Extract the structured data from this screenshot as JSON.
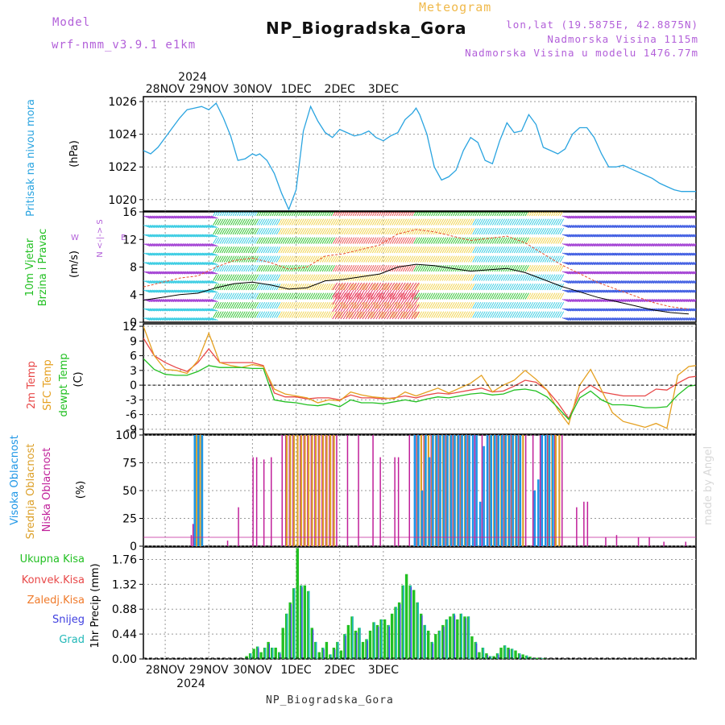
{
  "header": {
    "model_label": "Model",
    "model_name": "wrf-nmm_v3.9.1  e1km",
    "title": "NP_Biogradska_Gora",
    "meteogram": "Meteogram",
    "lonlat": "lon,lat (19.5875E, 42.8875N)",
    "elevation": "Nadmorska Visina 1115m",
    "model_elevation": "Nadmorska Visina u modelu 1476.77m",
    "made_by": "made by Angel",
    "footer": "NP_Biogradska_Gora"
  },
  "colors": {
    "pressure": "#2aa4e0",
    "wind_label": "#22c022",
    "temp2m": "#e84848",
    "sfc": "#e5a020",
    "dew": "#22c022",
    "high_cloud": "#1e96e6",
    "mid_cloud": "#dca02a",
    "low_cloud": "#c0209a",
    "total": "#22c022",
    "convective": "#e84848",
    "freezing": "#f07a2a",
    "snow": "#4040e0",
    "graupel": "#22b8b8"
  },
  "chart_data": [
    {
      "type": "line",
      "id": "pressure",
      "ylabel": "Pritisak na nivou mora",
      "unit": "(hPa)",
      "yticks": [
        1020,
        1022,
        1024,
        1026
      ],
      "ylim": [
        1019.3,
        1026.3
      ],
      "top_dates": {
        "year": "2024",
        "labels": [
          "28NOV",
          "29NOV",
          "30NOV",
          "1DEC",
          "2DEC",
          "3DEC"
        ]
      },
      "series": [
        {
          "x": [
            0,
            4,
            8,
            12,
            16,
            20,
            24,
            28,
            32,
            36,
            40,
            44,
            48,
            52,
            56,
            60,
            62,
            64,
            68,
            72,
            76,
            80,
            84,
            88,
            92,
            96,
            100,
            104,
            108,
            112,
            116,
            120,
            124,
            128,
            132,
            136,
            140,
            144,
            148,
            150,
            152,
            156,
            160,
            164,
            168,
            172,
            176,
            180,
            184,
            188,
            192,
            196,
            200,
            204,
            208,
            212,
            216,
            220,
            224,
            228,
            232,
            236,
            240,
            244,
            248,
            252,
            256,
            260,
            264,
            268,
            272,
            276,
            280,
            284,
            288,
            292,
            296,
            300,
            304
          ],
          "y": [
            1023.0,
            1022.8,
            1023.2,
            1023.8,
            1024.4,
            1025.0,
            1025.5,
            1025.6,
            1025.7,
            1025.5,
            1025.9,
            1025.0,
            1023.9,
            1022.4,
            1022.5,
            1022.8,
            1022.7,
            1022.8,
            1022.4,
            1021.6,
            1020.4,
            1019.4,
            1020.6,
            1024.2,
            1025.7,
            1024.8,
            1024.1,
            1023.8,
            1024.3,
            1024.1,
            1023.9,
            1024.0,
            1024.2,
            1023.8,
            1023.6,
            1023.9,
            1024.1,
            1024.9,
            1025.3,
            1025.6,
            1025.2,
            1024.0,
            1022.0,
            1021.2,
            1021.4,
            1021.8,
            1023.0,
            1023.8,
            1023.5,
            1022.4,
            1022.2,
            1023.6,
            1024.7,
            1024.1,
            1024.2,
            1025.2,
            1024.6,
            1023.2,
            1023.0,
            1022.8,
            1023.1,
            1024.0,
            1024.4,
            1024.4,
            1023.8,
            1022.8,
            1022.0,
            1022.0,
            1022.1,
            1021.9,
            1021.7,
            1021.5,
            1021.3,
            1021.0,
            1020.8,
            1020.6,
            1020.5,
            1020.5,
            1020.5
          ],
          "name": ""
        }
      ]
    },
    {
      "type": "line",
      "id": "wind",
      "ylabel": "10m Vjetar Brzina i Pravac",
      "unit": "(m/s)",
      "yticks": [
        0,
        4,
        8,
        12,
        16
      ],
      "ylim": [
        0,
        16
      ],
      "compass": "N  <-|->  S",
      "compass_w": "W",
      "compass_e": "E",
      "series": [
        {
          "name": "",
          "x": [
            0,
            10,
            20,
            30,
            40,
            50,
            60,
            70,
            80,
            90,
            100,
            110,
            120,
            130,
            140,
            150,
            160,
            170,
            180,
            190,
            200,
            210,
            220,
            230,
            240,
            250,
            260,
            270,
            280,
            290,
            300
          ],
          "y": [
            3.2,
            3.6,
            4.0,
            4.2,
            5.0,
            5.6,
            5.8,
            5.4,
            4.8,
            5.0,
            6.0,
            6.2,
            6.6,
            7.0,
            8.0,
            8.4,
            8.2,
            7.8,
            7.4,
            7.6,
            7.8,
            7.2,
            6.2,
            5.2,
            4.4,
            3.6,
            3.0,
            2.4,
            1.8,
            1.4,
            1.2
          ]
        }
      ]
    },
    {
      "type": "line",
      "id": "temperature",
      "ylabel": "2m Temp / SFC Temp / dewpt Temp",
      "labels": [
        "2m Temp",
        "SFC Temp",
        "dewpt Temp"
      ],
      "unit": "(C)",
      "yticks": [
        -9,
        -6,
        -3,
        0,
        3,
        6,
        9,
        12
      ],
      "ylim": [
        -10,
        12.5
      ],
      "x": [
        0,
        6,
        12,
        18,
        24,
        30,
        36,
        42,
        48,
        54,
        60,
        66,
        72,
        78,
        84,
        90,
        96,
        102,
        108,
        114,
        120,
        126,
        132,
        138,
        144,
        150,
        156,
        162,
        168,
        174,
        180,
        186,
        192,
        198,
        204,
        210,
        216,
        222,
        228,
        234,
        240,
        246,
        252,
        258,
        264,
        270,
        276,
        282,
        288,
        294,
        300,
        304
      ],
      "series": [
        {
          "name": "2m Temp",
          "values": [
            9.6,
            6.0,
            4.6,
            3.6,
            2.8,
            4.6,
            7.4,
            4.6,
            4.6,
            4.6,
            4.6,
            4.0,
            -1.6,
            -2.4,
            -2.4,
            -2.8,
            -2.6,
            -2.6,
            -3.0,
            -2.0,
            -2.6,
            -2.6,
            -2.8,
            -2.6,
            -2.2,
            -2.6,
            -2.0,
            -1.6,
            -1.8,
            -1.4,
            -1.0,
            -0.6,
            -1.4,
            -1.2,
            -0.2,
            1.0,
            0.6,
            -1.0,
            -3.6,
            -6.8,
            -1.6,
            0.0,
            -1.4,
            -1.8,
            -2.2,
            -2.2,
            -2.2,
            -0.8,
            -1.0,
            0.4,
            1.6,
            1.8
          ]
        },
        {
          "name": "SFC Temp",
          "values": [
            12.0,
            6.0,
            3.2,
            3.0,
            2.4,
            5.0,
            10.6,
            4.6,
            4.0,
            3.6,
            4.2,
            3.8,
            -0.8,
            -1.8,
            -2.2,
            -2.6,
            -3.6,
            -3.0,
            -3.2,
            -1.4,
            -2.0,
            -2.4,
            -2.6,
            -2.8,
            -1.4,
            -2.2,
            -1.4,
            -0.6,
            -1.6,
            -0.6,
            0.4,
            2.0,
            -1.4,
            0.0,
            1.0,
            3.0,
            1.2,
            -1.0,
            -5.0,
            -8.0,
            0.0,
            3.2,
            -1.0,
            -5.6,
            -7.4,
            -8.0,
            -8.6,
            -7.8,
            -8.8,
            2.0,
            3.8,
            4.0
          ]
        },
        {
          "name": "dewpt Temp",
          "values": [
            5.4,
            3.2,
            2.2,
            2.0,
            2.0,
            2.8,
            4.0,
            3.6,
            3.6,
            3.6,
            3.4,
            3.4,
            -3.0,
            -3.4,
            -3.6,
            -4.0,
            -4.2,
            -3.8,
            -4.4,
            -3.0,
            -3.6,
            -3.6,
            -3.8,
            -3.4,
            -3.0,
            -3.4,
            -2.8,
            -2.4,
            -2.6,
            -2.2,
            -1.8,
            -1.6,
            -2.0,
            -1.8,
            -1.0,
            -0.8,
            -1.2,
            -2.4,
            -4.6,
            -7.0,
            -2.6,
            -1.2,
            -3.0,
            -4.0,
            -4.0,
            -4.2,
            -4.6,
            -4.6,
            -4.4,
            -2.0,
            -0.2,
            0.0
          ]
        }
      ]
    },
    {
      "type": "bar",
      "id": "clouds",
      "ylabel": "Visoka Oblacnost / Srednja Oblacnost / Niska Oblacnost",
      "labels": [
        "Visoka Oblacnost",
        "Srednja Oblacnost",
        "Niska Oblacnost"
      ],
      "unit": "(%)",
      "yticks": [
        0,
        25,
        50,
        75,
        100
      ],
      "ylim": [
        0,
        100
      ],
      "series": [
        {
          "name": "Niska Oblacnost",
          "x": [
            26,
            27,
            46,
            52,
            60,
            62,
            66,
            70,
            76,
            78,
            80,
            82,
            86,
            88,
            90,
            92,
            94,
            96,
            98,
            100,
            102,
            104,
            106,
            112,
            118,
            126,
            130,
            138,
            140,
            146,
            150,
            154,
            158,
            162,
            166,
            170,
            174,
            178,
            182,
            186,
            190,
            194,
            198,
            202,
            206,
            210,
            214,
            218,
            222,
            226,
            230,
            238,
            242,
            244,
            254,
            260,
            272,
            278,
            286,
            298
          ],
          "y": [
            10,
            20,
            5,
            35,
            80,
            80,
            78,
            80,
            100,
            100,
            100,
            100,
            100,
            100,
            100,
            100,
            100,
            100,
            100,
            100,
            100,
            100,
            100,
            100,
            100,
            100,
            80,
            80,
            80,
            100,
            100,
            100,
            100,
            100,
            100,
            100,
            100,
            100,
            100,
            100,
            100,
            100,
            100,
            100,
            100,
            100,
            100,
            100,
            100,
            100,
            100,
            35,
            40,
            40,
            8,
            10,
            8,
            8,
            4,
            4
          ]
        },
        {
          "name": "Srednja Oblacnost",
          "x": [
            28,
            29,
            30,
            31,
            78,
            80,
            82,
            84,
            86,
            88,
            90,
            92,
            94,
            96,
            98,
            100,
            102,
            104,
            150,
            152,
            154,
            156,
            158,
            160,
            162,
            164,
            166,
            168,
            170,
            172,
            174,
            176,
            178,
            190,
            192,
            194,
            196,
            198,
            200,
            202,
            204,
            206,
            208,
            222,
            224,
            226,
            228
          ],
          "y": [
            100,
            100,
            100,
            100,
            100,
            100,
            100,
            100,
            100,
            100,
            100,
            100,
            100,
            100,
            100,
            100,
            100,
            100,
            100,
            100,
            100,
            100,
            100,
            100,
            100,
            100,
            100,
            100,
            100,
            100,
            100,
            100,
            100,
            100,
            100,
            100,
            100,
            100,
            100,
            100,
            100,
            100,
            100,
            100,
            100,
            100,
            100
          ]
        },
        {
          "name": "Visoka Oblacnost",
          "x": [
            27,
            29,
            31,
            148,
            150,
            152,
            154,
            156,
            158,
            160,
            162,
            164,
            166,
            168,
            170,
            172,
            174,
            176,
            178,
            180,
            182,
            184,
            186,
            188,
            190,
            192,
            194,
            196,
            198,
            200,
            202,
            204,
            206,
            214,
            216,
            218,
            220,
            222,
            224
          ],
          "y": [
            100,
            100,
            100,
            100,
            100,
            50,
            100,
            80,
            100,
            100,
            100,
            100,
            100,
            100,
            100,
            100,
            100,
            100,
            100,
            100,
            100,
            40,
            90,
            100,
            100,
            100,
            100,
            100,
            100,
            100,
            100,
            100,
            100,
            50,
            60,
            100,
            100,
            100,
            100
          ]
        }
      ]
    },
    {
      "type": "bar",
      "id": "precip",
      "ylabel": "1hr Precip (mm)",
      "legend": [
        "Ukupna Kisa",
        "Konvek.Kisa",
        "Zaledj.Kisa",
        "Snijeg",
        "Grad"
      ],
      "yticks": [
        0,
        0.44,
        0.88,
        1.32,
        1.76
      ],
      "ylim": [
        0,
        1.98
      ],
      "bottom_dates": {
        "year": "2024",
        "labels": [
          "28NOV",
          "29NOV",
          "30NOV",
          "1DEC",
          "2DEC",
          "3DEC"
        ]
      },
      "series": [
        {
          "name": "Ukupna Kisa",
          "x": [
            56,
            58,
            60,
            62,
            64,
            66,
            68,
            70,
            72,
            74,
            76,
            78,
            80,
            82,
            84,
            86,
            88,
            90,
            92,
            94,
            96,
            98,
            100,
            102,
            104,
            106,
            108,
            110,
            112,
            114,
            116,
            118,
            120,
            122,
            124,
            126,
            128,
            130,
            132,
            134,
            136,
            138,
            140,
            142,
            144,
            146,
            148,
            150,
            152,
            154,
            156,
            158,
            160,
            162,
            164,
            166,
            168,
            170,
            172,
            174,
            176,
            178,
            180,
            182,
            184,
            186,
            188,
            190,
            192,
            194,
            196,
            198,
            200,
            202,
            204,
            206,
            208,
            210,
            212,
            214,
            216,
            218,
            220
          ],
          "y": [
            0.05,
            0.1,
            0.18,
            0.22,
            0.12,
            0.2,
            0.3,
            0.2,
            0.2,
            0.12,
            0.55,
            0.8,
            1.0,
            1.25,
            1.96,
            1.3,
            1.3,
            1.2,
            0.55,
            0.3,
            0.12,
            0.2,
            0.3,
            0.08,
            0.2,
            0.3,
            0.15,
            0.44,
            0.6,
            0.75,
            0.5,
            0.55,
            0.3,
            0.35,
            0.5,
            0.65,
            0.6,
            0.7,
            0.7,
            0.6,
            0.8,
            0.92,
            1.0,
            1.3,
            1.5,
            1.3,
            1.22,
            1.0,
            0.8,
            0.6,
            0.5,
            0.3,
            0.44,
            0.5,
            0.6,
            0.7,
            0.75,
            0.8,
            0.7,
            0.8,
            0.75,
            0.75,
            0.4,
            0.3,
            0.12,
            0.2,
            0.1,
            0.05,
            0.05,
            0.1,
            0.2,
            0.24,
            0.2,
            0.18,
            0.15,
            0.1,
            0.08,
            0.06,
            0.04,
            0.02,
            0.02,
            0.02,
            0.01
          ]
        }
      ]
    }
  ]
}
